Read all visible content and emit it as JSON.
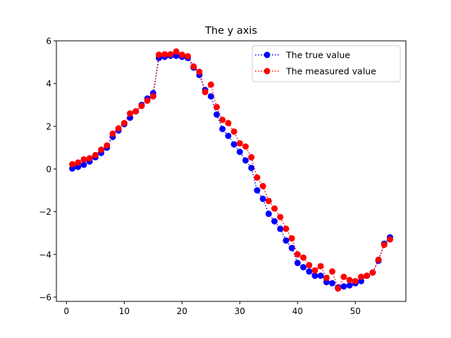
{
  "chart_data": {
    "type": "line",
    "title": "The y axis",
    "xlabel": "",
    "ylabel": "",
    "xlim": [
      -1.75,
      58.75
    ],
    "ylim": [
      -6.2,
      6.0
    ],
    "xticks": [
      0,
      10,
      20,
      30,
      40,
      50
    ],
    "yticks": [
      -6,
      -4,
      -2,
      0,
      2,
      4,
      6
    ],
    "grid": false,
    "legend_position": "top-right",
    "x": [
      1,
      2,
      3,
      4,
      5,
      6,
      7,
      8,
      9,
      10,
      11,
      12,
      13,
      14,
      15,
      16,
      17,
      18,
      19,
      20,
      21,
      22,
      23,
      24,
      25,
      26,
      27,
      28,
      29,
      30,
      31,
      32,
      33,
      34,
      35,
      36,
      37,
      38,
      39,
      40,
      41,
      42,
      43,
      44,
      45,
      46,
      47,
      48,
      49,
      50,
      51,
      52,
      53,
      54,
      55,
      56
    ],
    "series": [
      {
        "name": "The true value",
        "color": "#0000ff",
        "marker": "circle",
        "linestyle": "dotted",
        "values": [
          0.02,
          0.1,
          0.2,
          0.35,
          0.55,
          0.75,
          1.0,
          1.5,
          1.8,
          2.1,
          2.4,
          2.7,
          3.0,
          3.3,
          3.55,
          5.2,
          5.25,
          5.3,
          5.3,
          5.25,
          5.2,
          4.75,
          4.4,
          3.7,
          3.4,
          2.55,
          1.87,
          1.55,
          1.15,
          0.8,
          0.4,
          0.05,
          -1.0,
          -1.4,
          -2.1,
          -2.45,
          -2.8,
          -3.35,
          -3.7,
          -4.4,
          -4.6,
          -4.8,
          -5.0,
          -5.0,
          -5.3,
          -5.35,
          -5.55,
          -5.5,
          -5.45,
          -5.35,
          -5.25,
          -5.0,
          -4.85,
          -4.3,
          -3.5,
          -3.2
        ]
      },
      {
        "name": "The measured value",
        "color": "#ff0000",
        "marker": "circle",
        "linestyle": "dotted",
        "values": [
          0.22,
          0.3,
          0.45,
          0.5,
          0.65,
          0.9,
          1.1,
          1.65,
          1.9,
          2.15,
          2.6,
          2.7,
          2.95,
          3.2,
          3.4,
          5.35,
          5.37,
          5.37,
          5.5,
          5.35,
          5.28,
          4.8,
          4.55,
          3.6,
          3.95,
          2.9,
          2.3,
          2.15,
          1.75,
          1.2,
          1.05,
          0.55,
          -0.4,
          -0.8,
          -1.5,
          -1.85,
          -2.25,
          -2.8,
          -3.25,
          -4.0,
          -4.15,
          -4.5,
          -4.75,
          -4.55,
          -5.1,
          -4.8,
          -5.6,
          -5.05,
          -5.2,
          -5.25,
          -5.05,
          -5.0,
          -4.85,
          -4.25,
          -3.55,
          -3.3
        ]
      }
    ]
  }
}
